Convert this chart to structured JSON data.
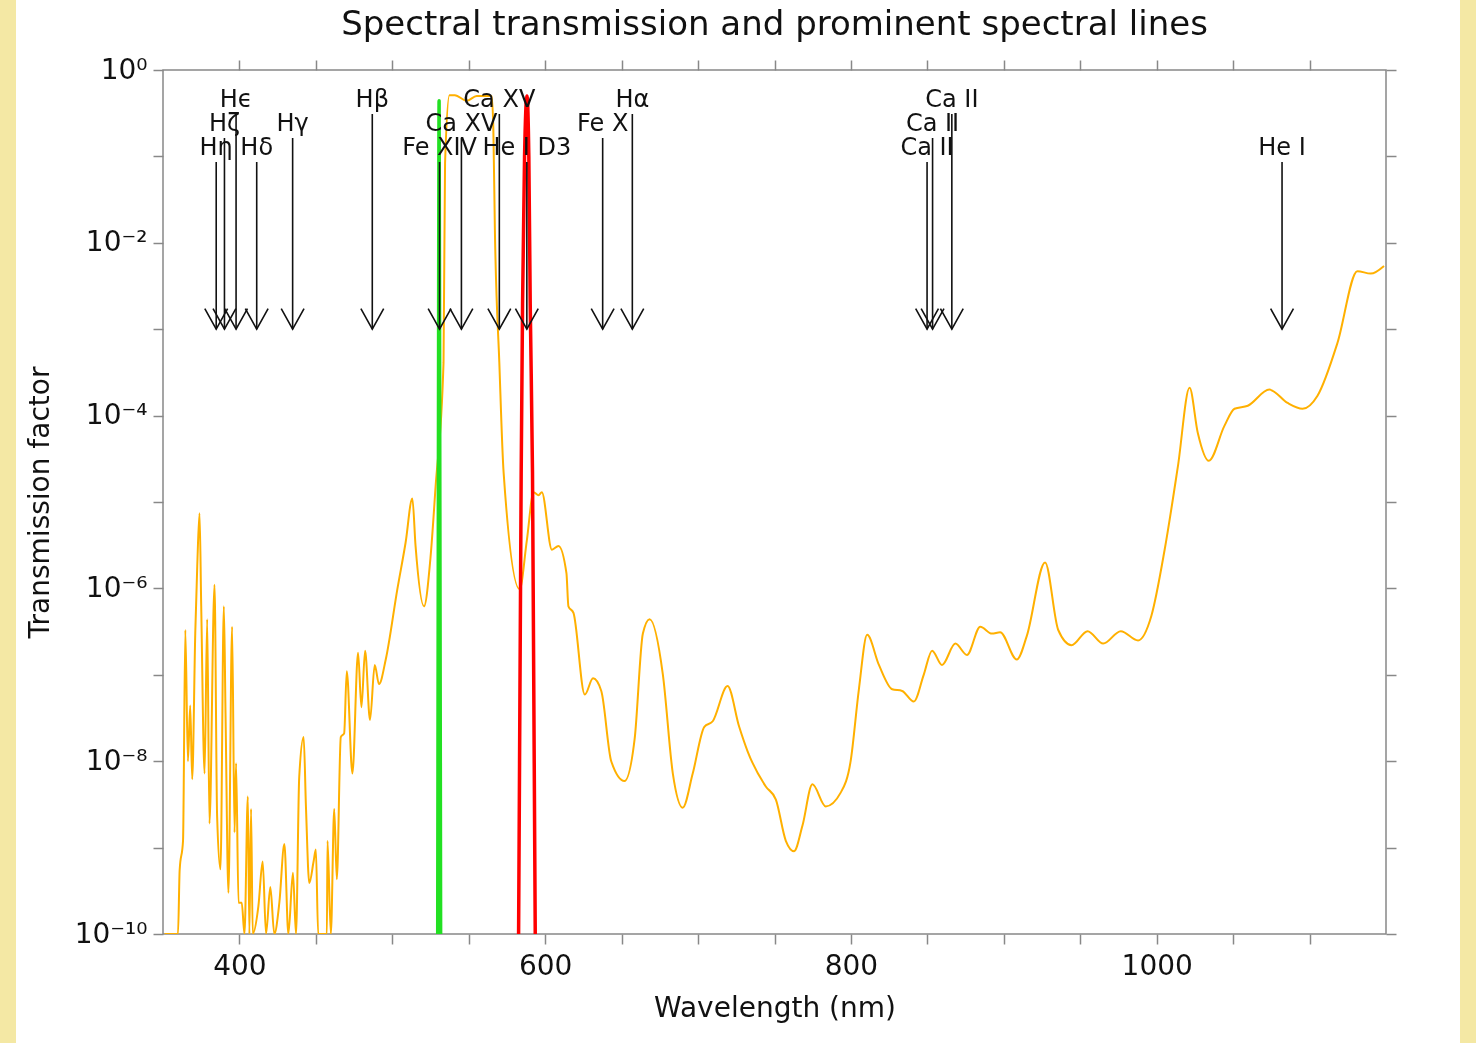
{
  "chart_data": {
    "type": "line",
    "title": "Spectral transmission and prominent spectral lines",
    "xlabel": "Wavelength (nm)",
    "ylabel": "Transmission factor",
    "log": "y",
    "xlim": [
      350,
      1150
    ],
    "ylim": [
      1e-10,
      1
    ],
    "xticks": [
      400,
      {
        "value": 450,
        "label": null
      },
      {
        "value": 500,
        "label": null
      },
      {
        "value": 550,
        "label": null
      },
      600,
      {
        "value": 650,
        "label": null
      },
      {
        "value": 700,
        "label": null
      },
      {
        "value": 750,
        "label": null
      },
      800,
      {
        "value": 850,
        "label": null
      },
      {
        "value": 900,
        "label": null
      },
      {
        "value": 950,
        "label": null
      },
      1000,
      {
        "value": 1050,
        "label": null
      },
      {
        "value": 1100,
        "label": null
      }
    ],
    "yticks": [
      {
        "value": 1e-10,
        "label": "10⁻¹⁰"
      },
      {
        "value": 1e-09,
        "label": null
      },
      {
        "value": 1e-08,
        "label": "10⁻⁸"
      },
      {
        "value": 1e-07,
        "label": null
      },
      {
        "value": 1e-06,
        "label": "10⁻⁶"
      },
      {
        "value": 1e-05,
        "label": null
      },
      {
        "value": 0.0001,
        "label": "10⁻⁴"
      },
      {
        "value": 0.001,
        "label": null
      },
      {
        "value": 0.01,
        "label": "10⁻²"
      },
      {
        "value": 0.1,
        "label": null
      },
      {
        "value": 1,
        "label": "10⁰"
      }
    ],
    "series": [
      {
        "color": "#ffb000",
        "x": [
          351,
          359.8,
          360.9,
          363.1,
          364.6,
          366.3,
          367.8,
          369.1,
          371.1,
          372.4,
          373.9,
          375,
          377.2,
          378.9,
          380.4,
          383.7,
          385.4,
          387.6,
          389.8,
          390.9,
          392.8,
          395.2,
          396.8,
          397.8,
          399.4,
          401.5,
          403.3,
          405.5,
          406.5,
          407.6,
          408.7,
          412.4,
          415.2,
          417.4,
          420.2,
          422.8,
          426.1,
          429.4,
          432,
          435,
          437,
          439.1,
          442,
          443.5,
          445.7,
          448.5,
          450,
          451.5,
          457.2,
          457.6,
          459.8,
          462,
          463.7,
          466.3,
          468.5,
          470.2,
          473.9,
          477.6,
          479.8,
          482.2,
          485.4,
          488.5,
          491.3,
          495.7,
          503.3,
          508.7,
          513.1,
          515.2,
          520.7,
          525,
          528.3,
          533.5,
          534.5,
          537.4,
          540.9,
          548.7,
          555.2,
          565,
          566.1,
          567.1,
          570,
          572.8,
          583.3,
          588,
          592.4,
          595.7,
          597.8,
          604.4,
          608.7,
          613.9,
          615.2,
          618.5,
          625.9,
          631.3,
          636.7,
          643.2,
          651.9,
          658.5,
          663.9,
          668.3,
          677,
          683.5,
          690,
          696.5,
          704.1,
          709.6,
          719.3,
          726.9,
          732.4,
          744.3,
          750.9,
          757.4,
          762.8,
          768.3,
          774.8,
          783.5,
          793.2,
          799.8,
          805.2,
          810.6,
          818.3,
          827,
          833.5,
          841.1,
          847.6,
          853.1,
          859.6,
          868.3,
          875.9,
          884.6,
          892.2,
          897.6,
          908.5,
          915,
          927,
          935.6,
          944.3,
          954.8,
          965,
          976.5,
          987.8,
          996.5,
          1005.2,
          1013.9,
          1021.5,
          1026.9,
          1034.1,
          1044.3,
          1050.9,
          1059.6,
          1073.7,
          1085.6,
          1095.4,
          1105.2,
          1118.2,
          1131.3,
          1140,
          1148.7
        ],
        "values": [
          1e-10,
          1e-10,
          5.5e-10,
          1.2e-09,
          3.3e-07,
          1e-08,
          4.4e-08,
          6.2e-09,
          3e-07,
          1.8e-06,
          7.4e-06,
          6.2e-07,
          7.2e-09,
          4.4e-07,
          1.9e-09,
          1.1e-06,
          2.3e-09,
          5.6e-10,
          6.2e-07,
          3.6e-08,
          3e-10,
          3.6e-07,
          1.5e-09,
          9.5e-09,
          2.3e-10,
          2.3e-10,
          1e-10,
          3.9e-09,
          1e-10,
          2.8e-09,
          1e-10,
          2.1e-10,
          6.9e-10,
          1e-10,
          3.5e-10,
          1e-10,
          2.3e-10,
          1.1e-09,
          1e-10,
          5.1e-10,
          1e-10,
          6.5e-09,
          1.9e-08,
          3e-09,
          3.9e-10,
          6.9e-10,
          9.5e-10,
          1e-10,
          1e-10,
          1.2e-09,
          1e-10,
          2.8e-09,
          4.3e-10,
          1.9e-08,
          2.1e-08,
          1.1e-07,
          7.2e-09,
          1.8e-07,
          4.2e-08,
          1.9e-07,
          3e-08,
          1.3e-07,
          7.8e-08,
          1.5e-07,
          9.8e-07,
          3.4e-06,
          1.1e-05,
          3.1e-06,
          6.2e-07,
          2.3e-06,
          1.5e-05,
          0.00041,
          0.083,
          0.51,
          0.51,
          0.44,
          0.5,
          0.5,
          0.2,
          0.014,
          0.00041,
          2.2e-05,
          9.8e-07,
          3.6e-06,
          1.3e-05,
          1.2e-05,
          1.3e-05,
          2.8e-06,
          3.1e-06,
          1.5e-06,
          6.2e-07,
          5.2e-07,
          5.9e-08,
          9.1e-08,
          6.5e-08,
          1e-08,
          5.9e-09,
          1.8e-08,
          3e-07,
          4.4e-07,
          1e-07,
          7.2e-09,
          2.9e-09,
          7.2e-09,
          2.5e-08,
          2.9e-08,
          7.4e-08,
          2.5e-08,
          1.3e-08,
          5.1e-09,
          3.6e-09,
          1.2e-09,
          9.1e-10,
          1.8e-09,
          5.4e-09,
          3e-09,
          4.3e-09,
          1e-08,
          6.8e-08,
          2.9e-07,
          1.3e-07,
          6.8e-08,
          6.5e-08,
          4.9e-08,
          1e-07,
          1.9e-07,
          1.3e-07,
          2.3e-07,
          1.7e-07,
          3.6e-07,
          3e-07,
          3.1e-07,
          1.5e-07,
          2.8e-07,
          2e-06,
          3.3e-07,
          2.2e-07,
          3.2e-07,
          2.3e-07,
          3.2e-07,
          2.5e-07,
          4.8e-07,
          2.8e-06,
          2.6e-05,
          0.00021,
          6.3e-05,
          3e-05,
          7.6e-05,
          0.00012,
          0.00013,
          0.0002,
          0.00014,
          0.00012,
          0.00017,
          0.00069,
          0.0047,
          0.0044,
          0.0054
        ]
      },
      {
        "color": "#22e022",
        "x": [
          529.7,
          530.2,
          530.6,
          531.0,
          531.6
        ],
        "values": [
          1e-10,
          0.0001,
          0.44,
          0.0001,
          1e-10
        ]
      },
      {
        "color": "#ff0000",
        "x": [
          582.6,
          584.3,
          585.2,
          586.5,
          588.1,
          589.3,
          590.2,
          591.7,
          593.5
        ],
        "values": [
          1e-10,
          2.2e-05,
          0.002,
          0.1,
          0.5,
          0.1,
          0.002,
          2.2e-05,
          1e-10
        ]
      }
    ],
    "ref_lines": [
      {
        "axis": "x",
        "value": 384.8,
        "label": "Hη"
      },
      {
        "axis": "x",
        "value": 390.2,
        "label": "Hζ"
      },
      {
        "axis": "x",
        "value": 397.8,
        "label": "Hϵ"
      },
      {
        "axis": "x",
        "value": 411.3,
        "label": "Hδ"
      },
      {
        "axis": "x",
        "value": 434.8,
        "label": "Hγ"
      },
      {
        "axis": "x",
        "value": 486.9,
        "label": "Hβ"
      },
      {
        "axis": "x",
        "value": 530.9,
        "label": "Fe XIV"
      },
      {
        "axis": "x",
        "value": 545.2,
        "label": "Ca XV"
      },
      {
        "axis": "x",
        "value": 570,
        "label": "Ca XV"
      },
      {
        "axis": "x",
        "value": 588,
        "label": "He I D3"
      },
      {
        "axis": "x",
        "value": 637.6,
        "label": "Fe X"
      },
      {
        "axis": "x",
        "value": 657,
        "label": "Hα"
      },
      {
        "axis": "x",
        "value": 849.8,
        "label": "Ca II"
      },
      {
        "axis": "x",
        "value": 853.4,
        "label": "Ca II"
      },
      {
        "axis": "x",
        "value": 866,
        "label": "Ca II"
      },
      {
        "axis": "x",
        "value": 1082,
        "label": "He I"
      }
    ]
  }
}
